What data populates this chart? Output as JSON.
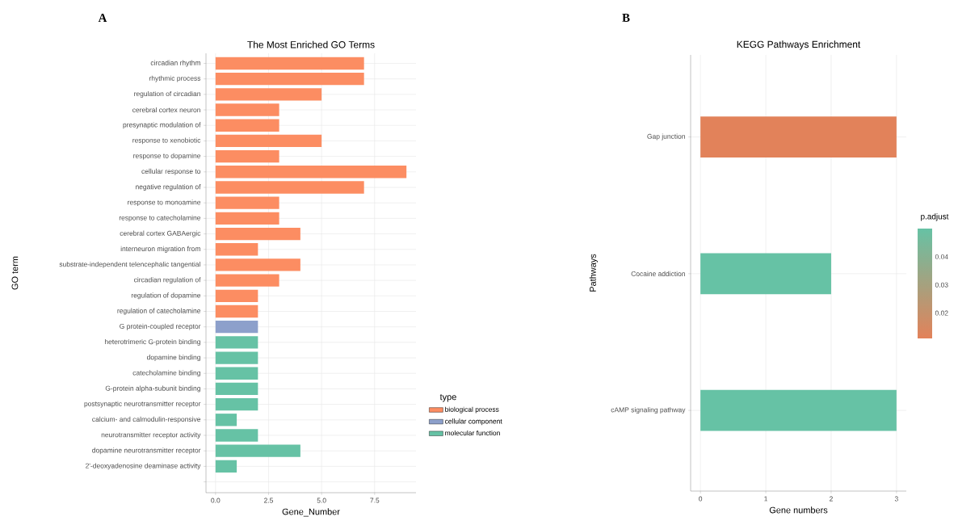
{
  "chart_data": [
    {
      "type": "bar",
      "orientation": "horizontal",
      "title": "The Most Enriched GO Terms",
      "xlabel": "Gene_Number",
      "ylabel": "GO term",
      "legend_title": "type",
      "legend": "right",
      "grid": true,
      "categories": [
        "circadian rhythm",
        "rhythmic process",
        "regulation of circadian",
        "cerebral cortex neuron",
        "presynaptic modulation of",
        "response to xenobiotic",
        "response to dopamine",
        "cellular response to",
        "negative regulation of",
        "response to monoamine",
        "response to catecholamine",
        "cerebral cortex GABAergic",
        "interneuron migration from",
        "substrate-independent telencephalic tangential",
        "circadian regulation of",
        "regulation of dopamine",
        "regulation of catecholamine",
        "G protein-coupled receptor",
        "heterotrimeric G-protein binding",
        "dopamine binding",
        "catecholamine binding",
        "G-protein alpha-subunit binding",
        "postsynaptic neurotransmitter receptor",
        "calcium- and calmodulin-responsive",
        "neurotransmitter receptor activity",
        "dopamine neurotransmitter receptor",
        "2'-deoxyadenosine deaminase activity",
        null
      ],
      "xlim": [
        -0.45,
        9.45
      ],
      "xticks": [
        {
          "value": 0,
          "label": "0.0"
        },
        {
          "value": 2.5,
          "label": "2.5"
        },
        {
          "value": 5,
          "label": "5.0"
        },
        {
          "value": 7.5,
          "label": "7.5"
        }
      ],
      "series": [
        {
          "name": "biological process",
          "color": "#fc8d62",
          "values": [
            7,
            7,
            5,
            3,
            3,
            5,
            3,
            9,
            7,
            3,
            3,
            4,
            2,
            4,
            3,
            2,
            2,
            null,
            null,
            null,
            null,
            null,
            null,
            null,
            null,
            null,
            null,
            null
          ]
        },
        {
          "name": "cellular component",
          "color": "#8da0cb",
          "values": [
            null,
            null,
            null,
            null,
            null,
            null,
            null,
            null,
            null,
            null,
            null,
            null,
            null,
            null,
            null,
            null,
            null,
            2,
            null,
            null,
            null,
            null,
            null,
            null,
            null,
            null,
            null,
            null
          ]
        },
        {
          "name": "molecular function",
          "color": "#66c2a5",
          "values": [
            null,
            null,
            null,
            null,
            null,
            null,
            null,
            null,
            null,
            null,
            null,
            null,
            null,
            null,
            null,
            null,
            null,
            null,
            2,
            2,
            2,
            2,
            2,
            1,
            2,
            4,
            1,
            null
          ]
        }
      ],
      "annotations": [
        "A"
      ]
    },
    {
      "type": "bar",
      "orientation": "horizontal",
      "title": "KEGG Pathways Enrichment",
      "xlabel": "Gene numbers",
      "ylabel": "Pathways",
      "clabel": "p.adjust",
      "grid": true,
      "categories": [
        "Gap junction",
        "Cocaine addiction",
        "cAMP signaling pathway"
      ],
      "xlim": [
        -0.15,
        3.15
      ],
      "xticks": [
        0,
        1,
        2,
        3
      ],
      "values": [
        3,
        2,
        3
      ],
      "colors": [
        "#e2825a",
        "#66c2a5",
        "#66c2a5"
      ],
      "cvalues": [
        0.011,
        0.05,
        0.05
      ],
      "clim": [
        0.011,
        0.05
      ],
      "cticks": [
        0.02,
        0.03,
        0.04
      ],
      "annotations": [
        "B"
      ]
    }
  ]
}
